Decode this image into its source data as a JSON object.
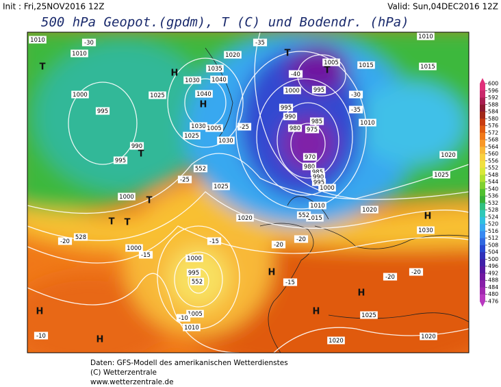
{
  "header": {
    "init": "Init : Fri,25NOV2016 12Z",
    "valid": "Valid: Sun,04DEC2016 12Z",
    "title": "500 hPa Geopot.(gpdm), T (C) und Bodendr. (hPa)"
  },
  "colorbar": {
    "levels": [
      600,
      596,
      592,
      588,
      584,
      580,
      576,
      572,
      568,
      564,
      560,
      556,
      552,
      548,
      544,
      540,
      536,
      532,
      528,
      524,
      520,
      516,
      512,
      508,
      504,
      500,
      496,
      492,
      488,
      484,
      480,
      476
    ],
    "colors": [
      "#e0307a",
      "#c8286a",
      "#a81e50",
      "#8c1a30",
      "#a02818",
      "#c83c10",
      "#e05a10",
      "#f07818",
      "#f89828",
      "#f8b838",
      "#f8d040",
      "#f0e040",
      "#d8e838",
      "#b0e030",
      "#80d030",
      "#50c030",
      "#38b038",
      "#30c080",
      "#30c8b8",
      "#30c0e0",
      "#38a8f0",
      "#3888f0",
      "#3068e0",
      "#2848d0",
      "#3030b8",
      "#4020a8",
      "#5818a0",
      "#7018a0",
      "#8820a8",
      "#a028b0",
      "#b838c0"
    ]
  },
  "map_labels": [
    "1010",
    "1010",
    "T",
    "H",
    "H",
    "T",
    "T",
    "1005",
    "1000",
    "995",
    "985",
    "975",
    "980",
    "990",
    "995",
    "970",
    "980",
    "985",
    "990",
    "995",
    "1000",
    "1010",
    "1015",
    "1000",
    "995",
    "990",
    "995",
    "1025",
    "1030",
    "1035",
    "1040",
    "1040",
    "1020",
    "1030",
    "1005",
    "1025",
    "1030",
    "1025",
    "1020",
    "1000",
    "1000",
    "1000",
    "995",
    "1005",
    "1010",
    "1025",
    "1020",
    "1020",
    "1030",
    "1020",
    "1020",
    "1025",
    "1015",
    "1010",
    "1015",
    "1010",
    "H",
    "H",
    "H",
    "H",
    "H",
    "H",
    "T",
    "T",
    "T",
    "T",
    "-30",
    "-35",
    "-40",
    "-35",
    "-30",
    "-25",
    "-25",
    "-20",
    "-15",
    "-15",
    "-20",
    "-20",
    "-15",
    "-20",
    "-20",
    "-10",
    "-10",
    "552",
    "552",
    "552",
    "528"
  ],
  "footer": [
    "Daten: GFS-Modell des amerikanischen Wetterdienstes",
    "(C) Wetterzentrale",
    "www.wetterzentrale.de"
  ]
}
